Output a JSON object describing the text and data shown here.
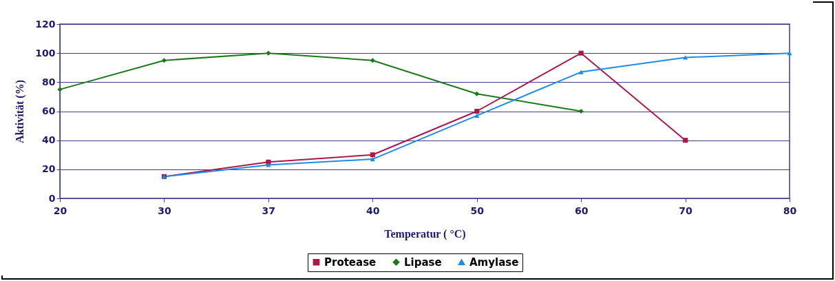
{
  "chart_data": {
    "type": "line",
    "xlabel": "Temperatur ( °C)",
    "ylabel": "Aktivität (%)",
    "categories": [
      "20",
      "30",
      "37",
      "40",
      "50",
      "60",
      "70",
      "80"
    ],
    "series": [
      {
        "name": "Protease",
        "color": "#b0154a",
        "marker": "square",
        "values": [
          null,
          15,
          25,
          30,
          60,
          100,
          40,
          null
        ]
      },
      {
        "name": "Lipase",
        "color": "#1a7a1a",
        "marker": "diamond",
        "values": [
          75,
          95,
          100,
          95,
          72,
          60,
          null,
          null
        ]
      },
      {
        "name": "Amylase",
        "color": "#1e8ce6",
        "marker": "triangle",
        "values": [
          null,
          15,
          23,
          27,
          57,
          87,
          97,
          100
        ]
      }
    ],
    "ylim": [
      0,
      120
    ],
    "yticks": [
      0,
      20,
      40,
      60,
      80,
      100,
      120
    ],
    "grid": "y",
    "legend": "bottom",
    "line_style": "solid"
  }
}
